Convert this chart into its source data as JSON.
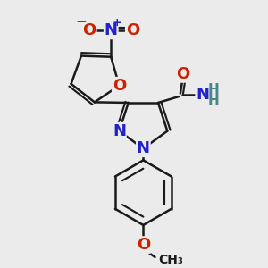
{
  "bg_color": "#ebebeb",
  "bond_color": "#1a1a1a",
  "bond_width": 1.8,
  "atom_colors": {
    "N": "#2222cc",
    "O": "#cc2200",
    "H": "#4a8888"
  },
  "font_size": 13,
  "font_size_h": 11
}
